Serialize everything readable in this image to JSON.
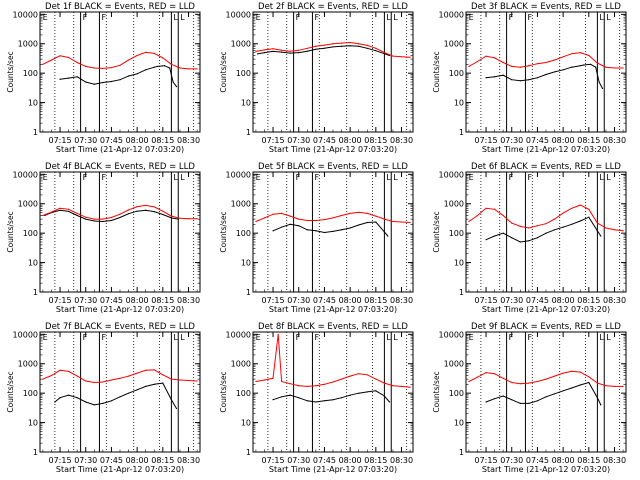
{
  "figure": {
    "ylabel": "Counts/sec",
    "xlabel": "Start Time (21-Apr-12 07:03:20)",
    "x_tick_labels": [
      "07:15",
      "07:30",
      "07:45",
      "08:00",
      "08:15",
      "08:30"
    ],
    "y_tick_labels": [
      "1",
      "10",
      "100",
      "1000",
      "10000"
    ],
    "colors": {
      "events": "#000000",
      "lld": "#ff0000"
    }
  },
  "chart_data": [
    {
      "type": "line",
      "title": "Det 1f BLACK = Events, RED = LLD",
      "ylim": [
        1,
        12000
      ],
      "xlim_minutes": [
        3.3,
        96.7
      ],
      "yscale": "log",
      "markers": {
        "E": 6,
        "F": [
          27,
          38
        ],
        "L": [
          80,
          84
        ]
      },
      "series": [
        {
          "name": "Events",
          "x": [
            15,
            20,
            25,
            30,
            35,
            40,
            45,
            50,
            55,
            60,
            65,
            70,
            72,
            76,
            79,
            81,
            83
          ],
          "y": [
            62,
            68,
            75,
            50,
            42,
            48,
            52,
            60,
            80,
            95,
            130,
            160,
            170,
            180,
            150,
            50,
            35
          ]
        },
        {
          "name": "LLD",
          "x": [
            5,
            10,
            15,
            20,
            25,
            30,
            35,
            40,
            45,
            50,
            55,
            60,
            65,
            70,
            75,
            80,
            85,
            90,
            95
          ],
          "y": [
            200,
            280,
            390,
            340,
            230,
            170,
            150,
            145,
            155,
            185,
            280,
            400,
            510,
            470,
            330,
            200,
            150,
            140,
            140
          ]
        }
      ]
    },
    {
      "type": "line",
      "title": "Det 2f BLACK = Events, RED = LLD",
      "ylim": [
        1,
        12000
      ],
      "xlim_minutes": [
        3.3,
        96.7
      ],
      "yscale": "log",
      "markers": {
        "E": 6,
        "F": [
          27,
          38
        ],
        "L": [
          80,
          84
        ]
      },
      "series": [
        {
          "name": "Events",
          "x": [
            6,
            10,
            15,
            20,
            25,
            30,
            35,
            40,
            45,
            50,
            55,
            60,
            65,
            70,
            75,
            80,
            83
          ],
          "y": [
            450,
            500,
            550,
            520,
            480,
            500,
            560,
            650,
            700,
            780,
            820,
            850,
            820,
            700,
            580,
            460,
            400
          ]
        },
        {
          "name": "LLD",
          "x": [
            5,
            10,
            15,
            20,
            25,
            30,
            35,
            40,
            45,
            50,
            55,
            60,
            65,
            70,
            75,
            80,
            85,
            90,
            95
          ],
          "y": [
            550,
            620,
            680,
            600,
            560,
            600,
            700,
            820,
            900,
            1000,
            1050,
            1100,
            1000,
            880,
            700,
            500,
            380,
            360,
            350
          ]
        }
      ]
    },
    {
      "type": "line",
      "title": "Det 3f BLACK = Events, RED = LLD",
      "ylim": [
        1,
        12000
      ],
      "xlim_minutes": [
        3.3,
        96.7
      ],
      "yscale": "log",
      "markers": {
        "E": 6,
        "F": [
          27,
          38
        ],
        "L": [
          80,
          84
        ]
      },
      "series": [
        {
          "name": "Events",
          "x": [
            15,
            20,
            25,
            30,
            35,
            40,
            45,
            50,
            55,
            60,
            65,
            70,
            72,
            76,
            79,
            81,
            83
          ],
          "y": [
            70,
            75,
            85,
            60,
            55,
            60,
            70,
            90,
            110,
            130,
            160,
            180,
            190,
            200,
            160,
            50,
            30
          ]
        },
        {
          "name": "LLD",
          "x": [
            5,
            10,
            15,
            20,
            25,
            30,
            35,
            40,
            45,
            50,
            55,
            60,
            65,
            70,
            75,
            80,
            85,
            90,
            95
          ],
          "y": [
            170,
            250,
            380,
            330,
            230,
            170,
            160,
            180,
            210,
            230,
            280,
            360,
            460,
            500,
            400,
            220,
            160,
            150,
            150
          ]
        }
      ]
    },
    {
      "type": "line",
      "title": "Det 4f BLACK = Events, RED = LLD",
      "ylim": [
        1,
        12000
      ],
      "xlim_minutes": [
        3.3,
        96.7
      ],
      "yscale": "log",
      "markers": {
        "E": 6,
        "F": [
          27,
          38
        ],
        "L": [
          80,
          84
        ]
      },
      "series": [
        {
          "name": "Events",
          "x": [
            6,
            10,
            15,
            20,
            25,
            30,
            35,
            40,
            45,
            50,
            55,
            60,
            65,
            70,
            75,
            80,
            84
          ],
          "y": [
            400,
            500,
            600,
            550,
            400,
            300,
            260,
            250,
            270,
            340,
            460,
            560,
            600,
            540,
            430,
            330,
            300
          ]
        },
        {
          "name": "LLD",
          "x": [
            5,
            10,
            15,
            20,
            25,
            30,
            35,
            40,
            45,
            50,
            55,
            60,
            65,
            70,
            75,
            80,
            85,
            90,
            95
          ],
          "y": [
            400,
            520,
            700,
            650,
            470,
            350,
            300,
            300,
            340,
            440,
            620,
            800,
            880,
            780,
            560,
            380,
            320,
            310,
            310
          ]
        }
      ]
    },
    {
      "type": "line",
      "title": "Det 5f BLACK = Events, RED = LLD",
      "ylim": [
        1,
        12000
      ],
      "xlim_minutes": [
        3.3,
        96.7
      ],
      "yscale": "log",
      "markers": {
        "E": 6,
        "F": [
          27,
          38
        ],
        "L": [
          80,
          84
        ]
      },
      "series": [
        {
          "name": "Events",
          "x": [
            15,
            20,
            25,
            30,
            35,
            40,
            45,
            50,
            55,
            60,
            65,
            70,
            75,
            80,
            82
          ],
          "y": [
            120,
            160,
            200,
            180,
            130,
            120,
            105,
            115,
            130,
            150,
            190,
            230,
            240,
            110,
            80
          ]
        },
        {
          "name": "LLD",
          "x": [
            5,
            10,
            15,
            20,
            25,
            30,
            35,
            40,
            45,
            50,
            55,
            60,
            65,
            70,
            75,
            80,
            85,
            90,
            95
          ],
          "y": [
            250,
            330,
            440,
            470,
            380,
            300,
            270,
            270,
            290,
            330,
            400,
            470,
            510,
            470,
            380,
            300,
            250,
            240,
            230
          ]
        }
      ]
    },
    {
      "type": "line",
      "title": "Det 6f BLACK = Events, RED = LLD",
      "ylim": [
        1,
        12000
      ],
      "xlim_minutes": [
        3.3,
        96.7
      ],
      "yscale": "log",
      "markers": {
        "E": 6,
        "F": [
          27,
          38
        ],
        "L": [
          80,
          84
        ]
      },
      "series": [
        {
          "name": "Events",
          "x": [
            15,
            20,
            25,
            30,
            35,
            40,
            45,
            50,
            55,
            60,
            65,
            70,
            75,
            80,
            82
          ],
          "y": [
            60,
            80,
            100,
            70,
            50,
            55,
            70,
            100,
            130,
            160,
            200,
            260,
            350,
            120,
            80
          ]
        },
        {
          "name": "LLD",
          "x": [
            5,
            10,
            15,
            20,
            25,
            30,
            35,
            40,
            45,
            50,
            55,
            60,
            65,
            70,
            75,
            80,
            85,
            90,
            95
          ],
          "y": [
            250,
            400,
            700,
            650,
            400,
            220,
            170,
            150,
            180,
            210,
            300,
            480,
            700,
            900,
            650,
            220,
            150,
            130,
            120
          ]
        }
      ]
    },
    {
      "type": "line",
      "title": "Det 7f BLACK = Events, RED = LLD",
      "ylim": [
        1,
        12000
      ],
      "xlim_minutes": [
        3.3,
        96.7
      ],
      "yscale": "log",
      "markers": {
        "E": 6,
        "F": [
          27,
          38
        ],
        "L": [
          80,
          84
        ]
      },
      "series": [
        {
          "name": "Events",
          "x": [
            12,
            15,
            20,
            25,
            30,
            35,
            40,
            45,
            50,
            55,
            60,
            65,
            70,
            75,
            80,
            83
          ],
          "y": [
            50,
            70,
            85,
            70,
            50,
            40,
            45,
            55,
            75,
            100,
            130,
            170,
            200,
            220,
            60,
            30
          ]
        },
        {
          "name": "LLD",
          "x": [
            5,
            10,
            15,
            20,
            25,
            30,
            35,
            40,
            45,
            50,
            55,
            60,
            65,
            70,
            75,
            80,
            85,
            90,
            95
          ],
          "y": [
            300,
            400,
            600,
            550,
            380,
            260,
            230,
            240,
            280,
            320,
            380,
            480,
            600,
            620,
            420,
            300,
            280,
            270,
            260
          ]
        }
      ]
    },
    {
      "type": "line",
      "title": "Det 8f BLACK = Events, RED = LLD",
      "ylim": [
        1,
        12000
      ],
      "xlim_minutes": [
        3.3,
        96.7
      ],
      "yscale": "log",
      "markers": {
        "E": 6,
        "F": [
          27,
          38
        ],
        "L": [
          80,
          84
        ]
      },
      "series": [
        {
          "name": "Events",
          "x": [
            15,
            20,
            25,
            30,
            35,
            40,
            45,
            50,
            55,
            60,
            65,
            70,
            75,
            80,
            83
          ],
          "y": [
            60,
            75,
            85,
            70,
            55,
            50,
            55,
            60,
            70,
            85,
            100,
            110,
            120,
            80,
            50
          ]
        },
        {
          "name": "LLD",
          "x": [
            5,
            10,
            15,
            18,
            20,
            25,
            30,
            35,
            40,
            45,
            50,
            55,
            60,
            65,
            70,
            75,
            80,
            85,
            90,
            95
          ],
          "y": [
            250,
            280,
            320,
            10000,
            250,
            210,
            180,
            170,
            180,
            200,
            240,
            300,
            380,
            460,
            420,
            300,
            220,
            180,
            170,
            160
          ]
        }
      ]
    },
    {
      "type": "line",
      "title": "Det 9f BLACK = Events, RED = LLD",
      "ylim": [
        1,
        12000
      ],
      "xlim_minutes": [
        3.3,
        96.7
      ],
      "yscale": "log",
      "markers": {
        "E": 6,
        "F": [
          27,
          38
        ],
        "L": [
          80,
          84
        ]
      },
      "series": [
        {
          "name": "Events",
          "x": [
            15,
            20,
            25,
            30,
            35,
            40,
            45,
            50,
            55,
            60,
            65,
            70,
            75,
            80,
            82
          ],
          "y": [
            50,
            65,
            80,
            60,
            45,
            45,
            55,
            75,
            95,
            120,
            150,
            190,
            230,
            70,
            40
          ]
        },
        {
          "name": "LLD",
          "x": [
            5,
            10,
            15,
            20,
            25,
            30,
            35,
            40,
            45,
            50,
            55,
            60,
            65,
            70,
            75,
            80,
            85,
            90,
            95
          ],
          "y": [
            250,
            350,
            500,
            460,
            320,
            230,
            210,
            220,
            250,
            300,
            380,
            480,
            560,
            520,
            360,
            220,
            180,
            170,
            170
          ]
        }
      ]
    }
  ]
}
